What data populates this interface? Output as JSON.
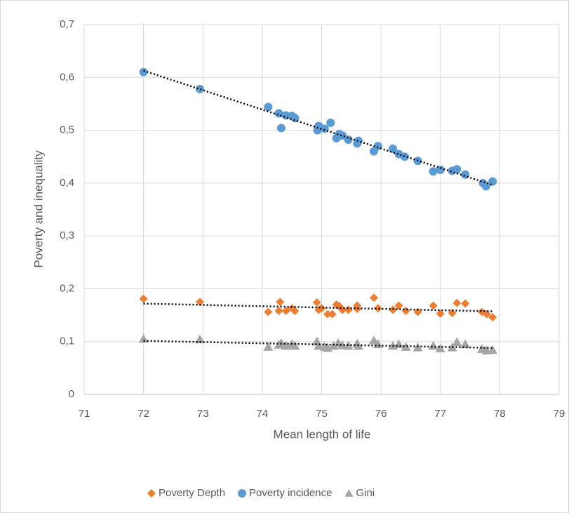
{
  "chart_data": {
    "type": "scatter",
    "x_label": "Mean length of life",
    "y_label": "Poverty and inequality",
    "xlim": [
      71,
      79
    ],
    "xticks": [
      71,
      72,
      73,
      74,
      75,
      76,
      77,
      78,
      79
    ],
    "ylim": [
      0,
      0.7
    ],
    "yticks": [
      0,
      {
        "value": 0.1,
        "label": "0,1"
      },
      {
        "value": 0.2,
        "label": "0,2"
      },
      {
        "value": 0.3,
        "label": "0,3"
      },
      {
        "value": 0.4,
        "label": "0,4"
      },
      {
        "value": 0.5,
        "label": "0,5"
      },
      {
        "value": 0.6,
        "label": "0,6"
      },
      {
        "value": 0.7,
        "label": "0,7"
      }
    ],
    "grid": true,
    "trendline": true,
    "legend": "bottom",
    "series": [
      {
        "name": "Poverty Depth",
        "color": "#ed7d31",
        "marker": "diamond",
        "x": [
          72.0,
          72.95,
          74.1,
          74.28,
          74.3,
          74.4,
          74.5,
          74.55,
          74.92,
          74.95,
          75.0,
          75.1,
          75.18,
          75.25,
          75.3,
          75.35,
          75.45,
          75.6,
          75.6,
          75.88,
          75.95,
          76.2,
          76.3,
          76.42,
          76.62,
          76.88,
          77.0,
          77.2,
          77.28,
          77.42,
          77.7,
          77.78,
          77.88
        ],
        "values": [
          0.181,
          0.175,
          0.156,
          0.158,
          0.175,
          0.158,
          0.163,
          0.158,
          0.174,
          0.16,
          0.163,
          0.152,
          0.152,
          0.17,
          0.167,
          0.16,
          0.16,
          0.168,
          0.162,
          0.183,
          0.163,
          0.16,
          0.168,
          0.158,
          0.156,
          0.168,
          0.153,
          0.154,
          0.173,
          0.172,
          0.156,
          0.152,
          0.146
        ]
      },
      {
        "name": "Poverty incidence",
        "color": "#5b9bd5",
        "marker": "circle",
        "x": [
          72.0,
          72.95,
          74.1,
          74.28,
          74.32,
          74.4,
          74.5,
          74.55,
          74.93,
          74.95,
          75.05,
          75.15,
          75.25,
          75.3,
          75.35,
          75.45,
          75.6,
          75.62,
          75.88,
          75.95,
          76.2,
          76.3,
          76.4,
          76.62,
          76.88,
          77.0,
          77.2,
          77.28,
          77.42,
          77.72,
          77.77,
          77.88
        ],
        "values": [
          0.61,
          0.578,
          0.544,
          0.532,
          0.504,
          0.528,
          0.527,
          0.523,
          0.5,
          0.508,
          0.503,
          0.514,
          0.485,
          0.493,
          0.49,
          0.482,
          0.475,
          0.48,
          0.46,
          0.47,
          0.465,
          0.455,
          0.45,
          0.442,
          0.422,
          0.425,
          0.423,
          0.426,
          0.416,
          0.4,
          0.394,
          0.403
        ]
      },
      {
        "name": "Gini",
        "color": "#a5a5a5",
        "marker": "triangle",
        "x": [
          72.0,
          72.95,
          74.1,
          74.28,
          74.32,
          74.4,
          74.5,
          74.55,
          74.92,
          74.95,
          75.05,
          75.1,
          75.2,
          75.28,
          75.35,
          75.45,
          75.6,
          75.62,
          75.88,
          75.95,
          76.2,
          76.3,
          76.42,
          76.62,
          76.88,
          77.0,
          77.2,
          77.28,
          77.42,
          77.7,
          77.78,
          77.88
        ],
        "values": [
          0.105,
          0.104,
          0.09,
          0.094,
          0.097,
          0.092,
          0.095,
          0.092,
          0.1,
          0.092,
          0.09,
          0.088,
          0.092,
          0.097,
          0.093,
          0.092,
          0.096,
          0.092,
          0.102,
          0.095,
          0.092,
          0.095,
          0.09,
          0.089,
          0.092,
          0.087,
          0.089,
          0.099,
          0.095,
          0.086,
          0.083,
          0.084
        ]
      }
    ]
  }
}
